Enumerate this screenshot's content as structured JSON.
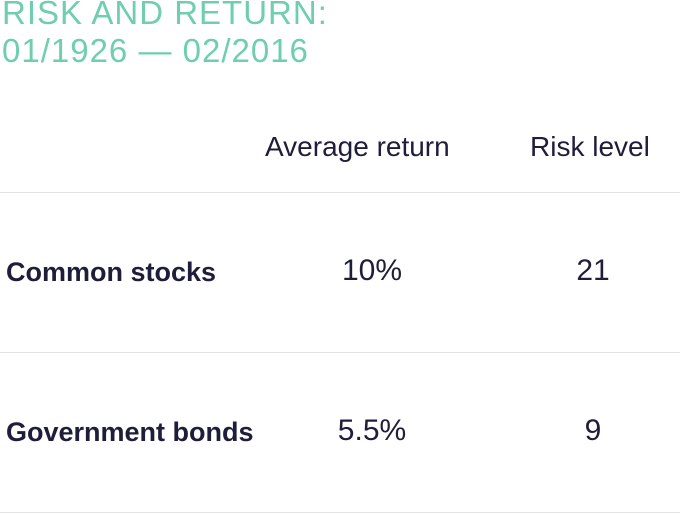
{
  "title": {
    "line1": "RISK AND RETURN:",
    "line2": "01/1926 — 02/2016"
  },
  "colors": {
    "title": "#6fcfad",
    "text": "#1e1d3a",
    "divider": "#e3e3e3"
  },
  "table": {
    "columns": [
      "",
      "Average return",
      "Risk level"
    ],
    "rows": [
      {
        "name": "Common stocks",
        "average_return": "10%",
        "risk_level": "21"
      },
      {
        "name": "Government bonds",
        "average_return": "5.5%",
        "risk_level": "9"
      }
    ]
  }
}
